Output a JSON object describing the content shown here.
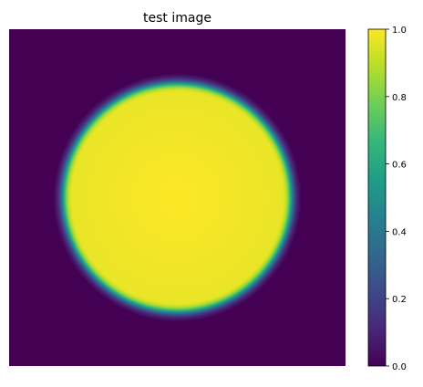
{
  "chart_data": {
    "type": "heatmap",
    "title": "test image",
    "xlabel": "",
    "ylabel": "",
    "axes_visible": false,
    "image": {
      "description_of_content": "solid disc of value 1.0 on background 0.0 with soft edge",
      "background_value": 0.0,
      "disc_value": 1.0,
      "disc_center_fraction": [
        0.5,
        0.5
      ],
      "disc_radius_fraction": 0.34,
      "edge_softness_fraction": 0.012
    },
    "colormap": "viridis",
    "clim": [
      0.0,
      1.0
    ],
    "colorbar": {
      "ticks": [
        0.0,
        0.2,
        0.4,
        0.6,
        0.8,
        1.0
      ],
      "tick_labels": [
        "0.0",
        "0.2",
        "0.4",
        "0.6",
        "0.8",
        "1.0"
      ]
    },
    "colors": {
      "viridis_stops": [
        "#440154",
        "#482878",
        "#3e4989",
        "#31688e",
        "#26828e",
        "#1f9e89",
        "#35b779",
        "#6ece58",
        "#b5de2b",
        "#fde725"
      ]
    }
  }
}
